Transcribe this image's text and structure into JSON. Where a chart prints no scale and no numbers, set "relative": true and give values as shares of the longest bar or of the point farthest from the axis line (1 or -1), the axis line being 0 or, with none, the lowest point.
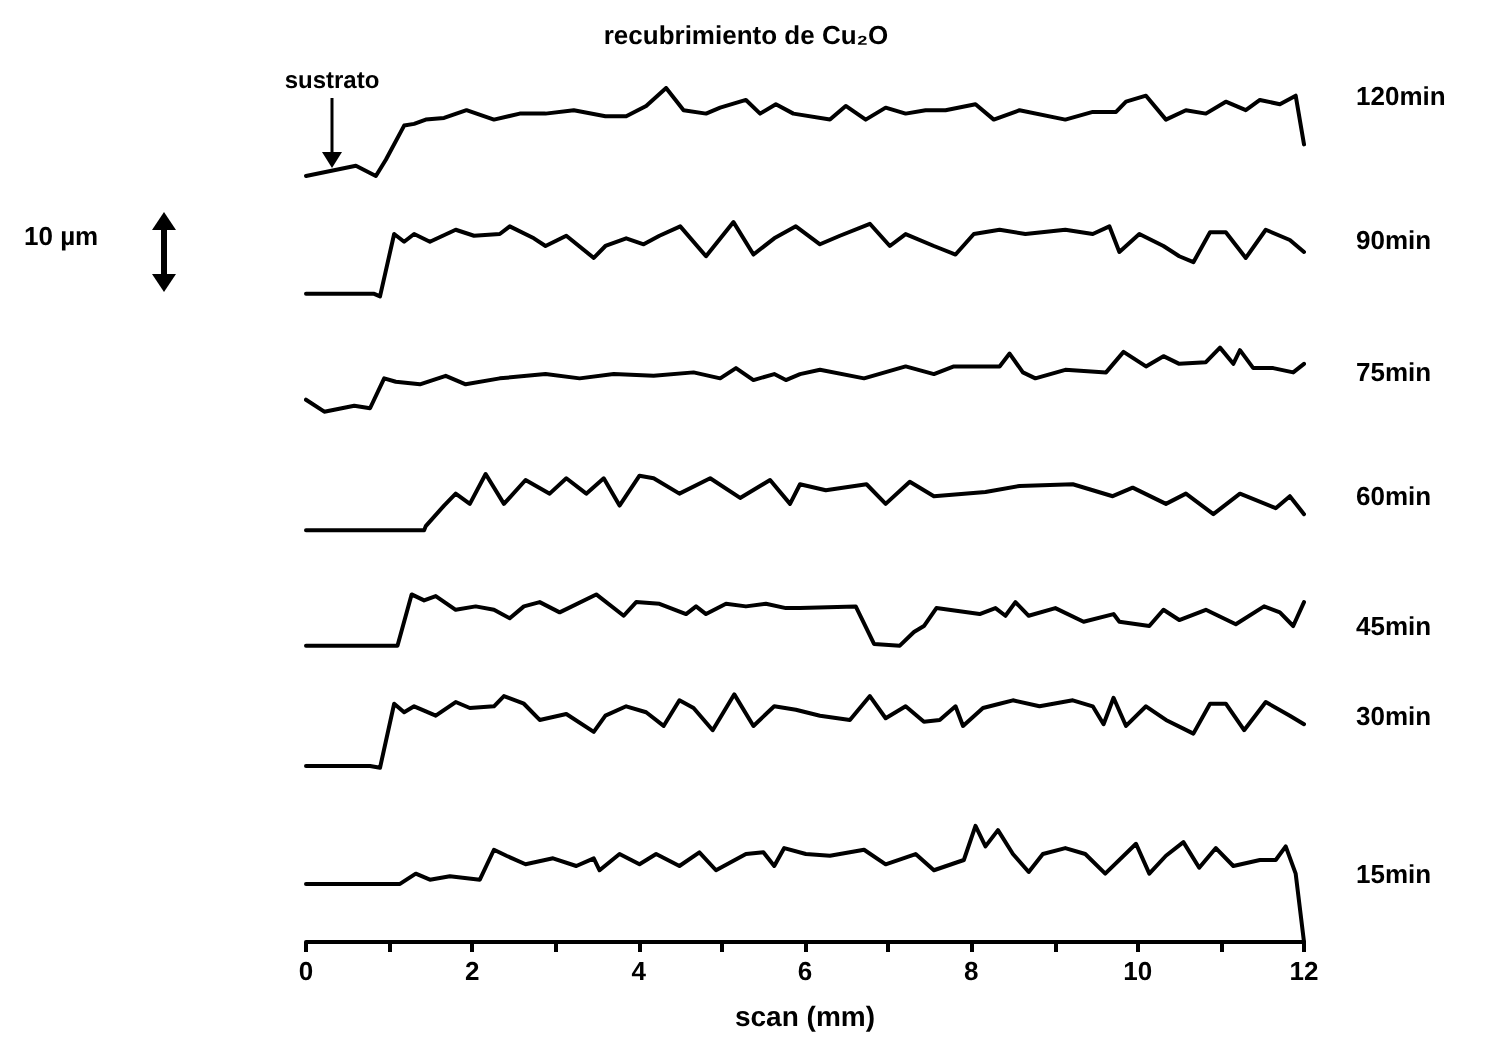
{
  "chart_data": {
    "type": "line",
    "title": "recubrimiento de Cu₂O",
    "xlabel": "scan (mm)",
    "relative": true,
    "xlim": [
      0,
      12
    ],
    "xticks": [
      0,
      {
        "value": 1,
        "label": null
      },
      2,
      {
        "value": 3,
        "label": null
      },
      4,
      {
        "value": 5,
        "label": null
      },
      6,
      {
        "value": 7,
        "label": null
      },
      8,
      {
        "value": 9,
        "label": null
      },
      10,
      {
        "value": 11,
        "label": null
      },
      12
    ],
    "grid": false,
    "legend": false,
    "marker": "none",
    "line_style": "solid",
    "annotations": [
      "sustrato",
      "10 µm"
    ],
    "series": [
      {
        "name": "120min",
        "color": "#000000",
        "x": [
          0,
          0.6,
          0.84,
          0.96,
          1.18,
          1.3,
          1.44,
          1.66,
          1.93,
          2.26,
          2.57,
          2.88,
          3.22,
          3.6,
          3.85,
          4.09,
          4.33,
          4.54,
          4.81,
          4.98,
          5.29,
          5.46,
          5.65,
          5.86,
          6.3,
          6.49,
          6.73,
          6.97,
          7.21,
          7.45,
          7.69,
          8.05,
          8.27,
          8.58,
          9.13,
          9.46,
          9.74,
          9.86,
          10.1,
          10.34,
          10.58,
          10.82,
          11.06,
          11.3,
          11.47,
          11.71,
          11.9,
          12
        ],
        "values": [
          0.897,
          0.909,
          0.897,
          0.916,
          0.956,
          0.958,
          0.963,
          0.965,
          0.974,
          0.963,
          0.97,
          0.97,
          0.974,
          0.967,
          0.967,
          0.979,
          1.0,
          0.974,
          0.97,
          0.977,
          0.986,
          0.97,
          0.981,
          0.97,
          0.963,
          0.979,
          0.963,
          0.977,
          0.97,
          0.974,
          0.974,
          0.981,
          0.963,
          0.974,
          0.963,
          0.972,
          0.972,
          0.984,
          0.991,
          0.963,
          0.974,
          0.97,
          0.984,
          0.974,
          0.986,
          0.981,
          0.991,
          0.934
        ]
      },
      {
        "name": "90min",
        "color": "#000000",
        "x": [
          0,
          0.82,
          0.89,
          1.06,
          1.18,
          1.3,
          1.49,
          1.8,
          2.02,
          2.33,
          2.45,
          2.74,
          2.88,
          3.13,
          3.46,
          3.6,
          3.85,
          4.06,
          4.25,
          4.5,
          4.81,
          5.14,
          5.38,
          5.63,
          5.89,
          6.18,
          6.42,
          6.78,
          7.02,
          7.21,
          7.55,
          7.81,
          8.03,
          8.34,
          8.65,
          9.13,
          9.46,
          9.66,
          9.78,
          10.02,
          10.31,
          10.5,
          10.67,
          10.87,
          11.06,
          11.3,
          11.54,
          11.83,
          12
        ],
        "values": [
          0.759,
          0.759,
          0.756,
          0.829,
          0.82,
          0.829,
          0.82,
          0.834,
          0.827,
          0.829,
          0.838,
          0.824,
          0.815,
          0.827,
          0.801,
          0.815,
          0.824,
          0.817,
          0.827,
          0.838,
          0.803,
          0.843,
          0.805,
          0.824,
          0.838,
          0.817,
          0.827,
          0.841,
          0.815,
          0.829,
          0.815,
          0.805,
          0.829,
          0.834,
          0.829,
          0.834,
          0.829,
          0.838,
          0.808,
          0.829,
          0.815,
          0.803,
          0.796,
          0.831,
          0.831,
          0.801,
          0.834,
          0.822,
          0.808
        ]
      },
      {
        "name": "75min",
        "color": "#000000",
        "x": [
          0,
          0.22,
          0.58,
          0.77,
          0.94,
          1.08,
          1.37,
          1.68,
          1.92,
          2.33,
          2.88,
          3.29,
          3.7,
          4.18,
          4.66,
          4.98,
          5.17,
          5.38,
          5.63,
          5.77,
          5.94,
          6.18,
          6.71,
          7.21,
          7.55,
          7.79,
          8.34,
          8.46,
          8.62,
          8.77,
          9.13,
          9.62,
          9.83,
          10.1,
          10.31,
          10.5,
          10.82,
          10.99,
          11.15,
          11.23,
          11.39,
          11.63,
          11.87,
          12
        ],
        "values": [
          0.635,
          0.621,
          0.628,
          0.625,
          0.66,
          0.656,
          0.653,
          0.663,
          0.653,
          0.66,
          0.665,
          0.66,
          0.665,
          0.663,
          0.667,
          0.66,
          0.672,
          0.658,
          0.665,
          0.658,
          0.665,
          0.67,
          0.66,
          0.674,
          0.665,
          0.674,
          0.674,
          0.689,
          0.667,
          0.66,
          0.67,
          0.667,
          0.691,
          0.674,
          0.686,
          0.677,
          0.679,
          0.696,
          0.677,
          0.693,
          0.672,
          0.672,
          0.667,
          0.677
        ]
      },
      {
        "name": "60min",
        "color": "#000000",
        "x": [
          0,
          1.42,
          1.44,
          1.66,
          1.8,
          1.97,
          2.16,
          2.38,
          2.64,
          2.93,
          3.13,
          3.37,
          3.58,
          3.77,
          4.01,
          4.18,
          4.49,
          4.86,
          5.22,
          5.58,
          5.82,
          5.94,
          6.25,
          6.74,
          6.97,
          7.26,
          7.55,
          8.17,
          8.58,
          9.22,
          9.7,
          9.94,
          10.34,
          10.58,
          10.91,
          11.23,
          11.66,
          11.83,
          12
        ],
        "values": [
          0.482,
          0.482,
          0.487,
          0.511,
          0.525,
          0.513,
          0.548,
          0.513,
          0.541,
          0.525,
          0.543,
          0.525,
          0.543,
          0.511,
          0.546,
          0.543,
          0.525,
          0.543,
          0.52,
          0.541,
          0.513,
          0.536,
          0.529,
          0.536,
          0.513,
          0.539,
          0.522,
          0.527,
          0.534,
          0.536,
          0.522,
          0.532,
          0.513,
          0.525,
          0.501,
          0.525,
          0.508,
          0.522,
          0.501
        ]
      },
      {
        "name": "45min",
        "color": "#000000",
        "x": [
          0,
          1.1,
          1.27,
          1.42,
          1.56,
          1.8,
          2.04,
          2.26,
          2.45,
          2.62,
          2.81,
          3.05,
          3.49,
          3.82,
          3.97,
          4.25,
          4.57,
          4.69,
          4.81,
          5.05,
          5.29,
          5.53,
          5.77,
          5.94,
          6.61,
          6.83,
          7.14,
          7.31,
          7.43,
          7.58,
          8.1,
          8.29,
          8.41,
          8.53,
          8.69,
          9.01,
          9.35,
          9.71,
          9.78,
          10.14,
          10.31,
          10.5,
          10.82,
          11.18,
          11.52,
          11.71,
          11.87,
          12
        ],
        "values": [
          0.347,
          0.347,
          0.407,
          0.4,
          0.405,
          0.389,
          0.393,
          0.389,
          0.379,
          0.393,
          0.398,
          0.386,
          0.407,
          0.382,
          0.398,
          0.396,
          0.384,
          0.393,
          0.384,
          0.396,
          0.393,
          0.396,
          0.391,
          0.391,
          0.393,
          0.349,
          0.347,
          0.363,
          0.37,
          0.391,
          0.384,
          0.391,
          0.382,
          0.398,
          0.382,
          0.391,
          0.375,
          0.384,
          0.375,
          0.37,
          0.389,
          0.377,
          0.389,
          0.372,
          0.393,
          0.386,
          0.37,
          0.398
        ]
      },
      {
        "name": "30min",
        "color": "#000000",
        "x": [
          0,
          0.77,
          0.89,
          1.06,
          1.18,
          1.3,
          1.56,
          1.8,
          1.97,
          2.26,
          2.38,
          2.62,
          2.81,
          3.13,
          3.46,
          3.6,
          3.85,
          4.09,
          4.3,
          4.49,
          4.66,
          4.89,
          5.15,
          5.38,
          5.63,
          5.89,
          6.18,
          6.54,
          6.78,
          6.97,
          7.21,
          7.43,
          7.62,
          7.81,
          7.9,
          8.14,
          8.34,
          8.5,
          8.82,
          9.22,
          9.46,
          9.59,
          9.71,
          9.86,
          10.1,
          10.34,
          10.67,
          10.87,
          11.06,
          11.28,
          11.54,
          11.83,
          12
        ],
        "values": [
          0.206,
          0.206,
          0.204,
          0.279,
          0.269,
          0.276,
          0.265,
          0.281,
          0.274,
          0.276,
          0.288,
          0.279,
          0.26,
          0.267,
          0.246,
          0.265,
          0.276,
          0.269,
          0.253,
          0.283,
          0.274,
          0.248,
          0.29,
          0.253,
          0.276,
          0.272,
          0.265,
          0.26,
          0.288,
          0.262,
          0.276,
          0.258,
          0.26,
          0.276,
          0.253,
          0.274,
          0.279,
          0.283,
          0.276,
          0.283,
          0.276,
          0.255,
          0.286,
          0.253,
          0.276,
          0.26,
          0.244,
          0.279,
          0.279,
          0.248,
          0.281,
          0.265,
          0.255
        ]
      },
      {
        "name": "15min",
        "color": "#000000",
        "x": [
          0,
          1.13,
          1.32,
          1.49,
          1.73,
          2.09,
          2.26,
          2.41,
          2.64,
          2.97,
          3.25,
          3.46,
          3.53,
          3.77,
          4.01,
          4.21,
          4.49,
          4.73,
          4.93,
          5.29,
          5.5,
          5.63,
          5.75,
          6.01,
          6.3,
          6.71,
          6.97,
          7.33,
          7.55,
          7.91,
          8.05,
          8.17,
          8.32,
          8.5,
          8.69,
          8.86,
          9.13,
          9.37,
          9.61,
          9.98,
          10.14,
          10.34,
          10.55,
          10.74,
          10.94,
          11.15,
          11.47,
          11.66,
          11.78,
          11.9,
          12
        ],
        "values": [
          0.068,
          0.068,
          0.08,
          0.073,
          0.077,
          0.073,
          0.108,
          0.101,
          0.091,
          0.098,
          0.089,
          0.098,
          0.084,
          0.103,
          0.091,
          0.103,
          0.089,
          0.105,
          0.084,
          0.103,
          0.105,
          0.089,
          0.11,
          0.103,
          0.101,
          0.108,
          0.091,
          0.103,
          0.084,
          0.096,
          0.136,
          0.112,
          0.131,
          0.103,
          0.082,
          0.103,
          0.11,
          0.103,
          0.08,
          0.115,
          0.08,
          0.101,
          0.117,
          0.087,
          0.11,
          0.089,
          0.096,
          0.096,
          0.112,
          0.08,
          0
        ]
      }
    ]
  }
}
